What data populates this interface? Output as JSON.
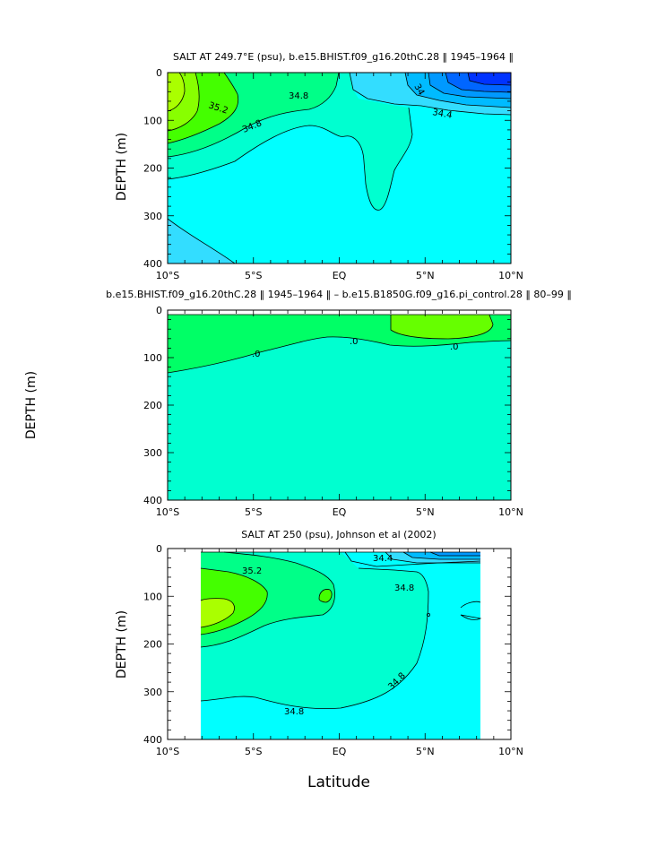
{
  "figure": {
    "shared_ylabel": "DEPTH (m)",
    "xlabel": "Latitude"
  },
  "colors": {
    "c343": "#00bbff",
    "c344": "#33ddff",
    "c346": "#00ffff",
    "c348": "#00ffd0",
    "c350": "#00ff88",
    "c352": "#44ff00",
    "c354": "#aaff00",
    "c_low1": "#0033ff",
    "c_low2": "#0066ff",
    "c_low3": "#0099ff",
    "diff_pos": "#00ff66",
    "diff_zero": "#00ffd0"
  },
  "chart_data": [
    {
      "type": "contour",
      "title": "SALT AT 249.7°E (psu), b.e15.BHIST.f09_g16.20thC.28 ‖ 1945–1964 ‖",
      "xlabel": "",
      "ylabel": "DEPTH (m)",
      "xlim": [
        -10,
        10
      ],
      "ylim": [
        400,
        0
      ],
      "xticks": [
        "10°S",
        "5°S",
        "EQ",
        "5°N",
        "10°N"
      ],
      "yticks": [
        "0",
        "100",
        "200",
        "300",
        "400"
      ],
      "contour_labels": [
        "34.8",
        "35.2",
        "34.8",
        "34.4",
        "34"
      ],
      "levels": [
        34.0,
        34.4,
        34.8,
        35.2
      ]
    },
    {
      "type": "contour",
      "title": "b.e15.BHIST.f09_g16.20thC.28 ‖ 1945–1964 ‖ – b.e15.B1850G.f09_g16.pi_control.28 ‖ 80–99 ‖",
      "xlabel": "",
      "ylabel": "DEPTH (m)",
      "xlim": [
        -10,
        10
      ],
      "ylim": [
        400,
        0
      ],
      "xticks": [
        "10°S",
        "5°S",
        "EQ",
        "5°N",
        "10°N"
      ],
      "yticks": [
        "0",
        "100",
        "200",
        "300",
        "400"
      ],
      "contour_labels": [
        ".0",
        ".0",
        ".0"
      ],
      "levels": [
        0.0
      ]
    },
    {
      "type": "contour",
      "title": "SALT AT 250 (psu), Johnson et al (2002)",
      "xlabel": "Latitude",
      "ylabel": "DEPTH (m)",
      "xlim": [
        -10,
        10
      ],
      "ylim": [
        400,
        0
      ],
      "data_extent_lat": [
        -8,
        8.2
      ],
      "xticks": [
        "10°S",
        "5°S",
        "EQ",
        "5°N",
        "10°N"
      ],
      "yticks": [
        "0",
        "100",
        "200",
        "300",
        "400"
      ],
      "contour_labels": [
        "35.2",
        "34.4",
        "34.8",
        "34.8",
        "34.8"
      ],
      "levels": [
        34.0,
        34.4,
        34.8,
        35.2
      ]
    }
  ]
}
